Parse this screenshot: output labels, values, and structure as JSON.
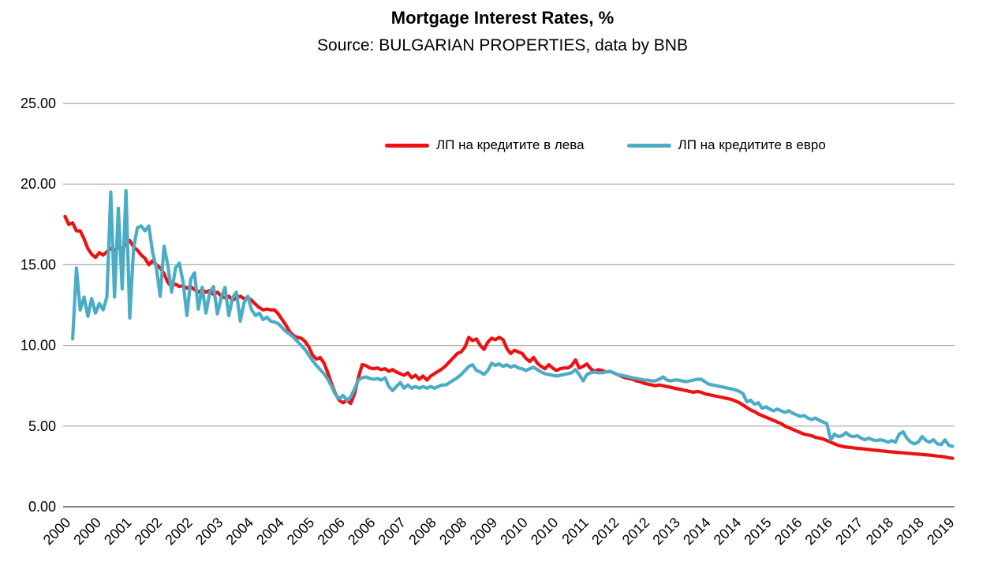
{
  "chart_data": {
    "type": "line",
    "title": "Mortgage Interest Rates, %",
    "subtitle": "Source: BULGARIAN PROPERTIES, data by BNB",
    "x_unit": "month",
    "x_start": "2000-01",
    "x_end": "2019-06",
    "x_tick_interval_months": 8,
    "x_tick_labels": [
      "2000",
      "2000",
      "2001",
      "2002",
      "2002",
      "2003",
      "2004",
      "2004",
      "2005",
      "2006",
      "2006",
      "2007",
      "2008",
      "2008",
      "2009",
      "2010",
      "2010",
      "2011",
      "2012",
      "2012",
      "2013",
      "2014",
      "2014",
      "2015",
      "2016",
      "2016",
      "2017",
      "2018",
      "2018",
      "2019"
    ],
    "ylim": [
      0,
      25
    ],
    "y_ticks": [
      "0.00",
      "5.00",
      "10.00",
      "15.00",
      "20.00",
      "25.00"
    ],
    "grid": "horizontal",
    "gridline_color": "#A6A6A6",
    "axis_line_color": "#7F7F7F",
    "legend_position": "top-inside",
    "series": [
      {
        "name": "ЛП на кредитите в лева",
        "color": "#ED1111",
        "values": [
          18.0,
          17.5,
          17.6,
          17.1,
          17.1,
          16.6,
          16.0,
          15.65,
          15.45,
          15.75,
          15.6,
          15.8,
          16.0,
          15.85,
          16.1,
          15.95,
          16.3,
          16.5,
          16.1,
          15.9,
          15.6,
          15.4,
          15.0,
          15.25,
          15.0,
          14.8,
          14.45,
          13.9,
          13.65,
          13.8,
          13.65,
          13.7,
          13.55,
          13.65,
          13.45,
          13.3,
          13.45,
          13.3,
          13.4,
          13.15,
          13.3,
          13.05,
          12.95,
          13.05,
          12.8,
          12.95,
          13.05,
          12.9,
          12.95,
          12.8,
          12.55,
          12.35,
          12.2,
          12.25,
          12.2,
          12.2,
          11.95,
          11.6,
          11.25,
          10.85,
          10.6,
          10.5,
          10.45,
          10.25,
          9.9,
          9.4,
          9.15,
          9.25,
          8.9,
          8.3,
          7.6,
          7.0,
          6.6,
          6.45,
          6.6,
          6.4,
          7.0,
          8.0,
          8.8,
          8.75,
          8.6,
          8.55,
          8.6,
          8.5,
          8.55,
          8.4,
          8.5,
          8.35,
          8.25,
          8.15,
          8.3,
          8.0,
          8.15,
          7.9,
          8.1,
          7.85,
          8.1,
          8.25,
          8.4,
          8.55,
          8.75,
          9.0,
          9.25,
          9.5,
          9.6,
          9.9,
          10.5,
          10.3,
          10.4,
          10.0,
          9.75,
          10.2,
          10.45,
          10.35,
          10.5,
          10.35,
          9.8,
          9.5,
          9.7,
          9.6,
          9.5,
          9.2,
          9.0,
          9.25,
          8.9,
          8.7,
          8.55,
          8.8,
          8.6,
          8.45,
          8.55,
          8.6,
          8.6,
          8.75,
          9.1,
          8.6,
          8.7,
          8.85,
          8.55,
          8.4,
          8.5,
          8.45,
          8.35,
          8.4,
          8.3,
          8.2,
          8.1,
          8.0,
          7.95,
          7.9,
          7.8,
          7.75,
          7.65,
          7.6,
          7.55,
          7.5,
          7.55,
          7.5,
          7.45,
          7.4,
          7.35,
          7.3,
          7.25,
          7.2,
          7.15,
          7.1,
          7.15,
          7.1,
          7.0,
          6.95,
          6.9,
          6.85,
          6.8,
          6.75,
          6.7,
          6.65,
          6.55,
          6.45,
          6.3,
          6.15,
          6.0,
          5.9,
          5.75,
          5.65,
          5.55,
          5.45,
          5.35,
          5.25,
          5.15,
          5.0,
          4.9,
          4.8,
          4.7,
          4.6,
          4.5,
          4.45,
          4.4,
          4.3,
          4.25,
          4.2,
          4.1,
          4.0,
          3.9,
          3.8,
          3.75,
          3.7,
          3.68,
          3.65,
          3.62,
          3.6,
          3.57,
          3.55,
          3.52,
          3.5,
          3.47,
          3.45,
          3.42,
          3.4,
          3.38,
          3.36,
          3.34,
          3.32,
          3.3,
          3.28,
          3.26,
          3.24,
          3.22,
          3.2,
          3.17,
          3.14,
          3.12,
          3.08,
          3.04,
          3.0
        ]
      },
      {
        "name": "ЛП на кредитите в евро",
        "color": "#4BACC6",
        "values": [
          null,
          null,
          10.4,
          14.8,
          12.2,
          13.0,
          11.8,
          12.9,
          12.0,
          12.6,
          12.2,
          13.0,
          19.5,
          13.0,
          18.5,
          13.5,
          19.6,
          11.7,
          16.0,
          17.3,
          17.4,
          17.1,
          17.4,
          15.75,
          14.8,
          13.05,
          16.15,
          14.95,
          13.3,
          14.8,
          15.1,
          13.95,
          11.85,
          14.1,
          14.5,
          12.25,
          13.6,
          12.0,
          13.3,
          13.65,
          11.95,
          12.95,
          13.6,
          11.85,
          12.95,
          13.3,
          11.5,
          12.65,
          13.05,
          12.2,
          11.85,
          12.0,
          11.6,
          11.75,
          11.5,
          11.45,
          11.35,
          11.1,
          10.85,
          10.7,
          10.5,
          10.25,
          10.0,
          9.75,
          9.4,
          9.05,
          8.75,
          8.5,
          8.25,
          7.9,
          7.45,
          6.95,
          6.7,
          6.9,
          6.6,
          6.8,
          7.3,
          7.85,
          8.0,
          8.05,
          7.95,
          7.9,
          7.95,
          7.85,
          8.0,
          7.45,
          7.2,
          7.45,
          7.7,
          7.35,
          7.55,
          7.35,
          7.45,
          7.35,
          7.45,
          7.35,
          7.45,
          7.35,
          7.45,
          7.55,
          7.55,
          7.7,
          7.85,
          8.0,
          8.2,
          8.45,
          8.7,
          8.8,
          8.45,
          8.35,
          8.2,
          8.45,
          8.9,
          8.75,
          8.85,
          8.7,
          8.8,
          8.65,
          8.75,
          8.6,
          8.55,
          8.45,
          8.55,
          8.65,
          8.5,
          8.35,
          8.25,
          8.2,
          8.15,
          8.1,
          8.15,
          8.2,
          8.25,
          8.3,
          8.5,
          8.2,
          7.8,
          8.2,
          8.3,
          8.35,
          8.3,
          8.3,
          8.35,
          8.4,
          8.3,
          8.2,
          8.15,
          8.1,
          8.05,
          8.0,
          7.95,
          7.9,
          7.85,
          7.85,
          7.8,
          7.8,
          7.9,
          8.05,
          7.85,
          7.8,
          7.85,
          7.85,
          7.8,
          7.75,
          7.8,
          7.85,
          7.9,
          7.9,
          7.75,
          7.6,
          7.55,
          7.5,
          7.45,
          7.4,
          7.35,
          7.3,
          7.25,
          7.15,
          7.0,
          6.5,
          6.6,
          6.35,
          6.45,
          6.1,
          6.2,
          6.05,
          5.95,
          6.05,
          5.95,
          5.85,
          5.95,
          5.8,
          5.7,
          5.6,
          5.65,
          5.5,
          5.4,
          5.5,
          5.35,
          5.25,
          5.15,
          4.15,
          4.5,
          4.35,
          4.4,
          4.6,
          4.4,
          4.35,
          4.4,
          4.25,
          4.15,
          4.25,
          4.15,
          4.1,
          4.15,
          4.1,
          4.0,
          4.1,
          4.0,
          4.5,
          4.65,
          4.25,
          4.0,
          3.9,
          4.0,
          4.35,
          4.1,
          4.0,
          4.15,
          3.9,
          3.85,
          4.15,
          3.8,
          3.75
        ]
      }
    ]
  }
}
